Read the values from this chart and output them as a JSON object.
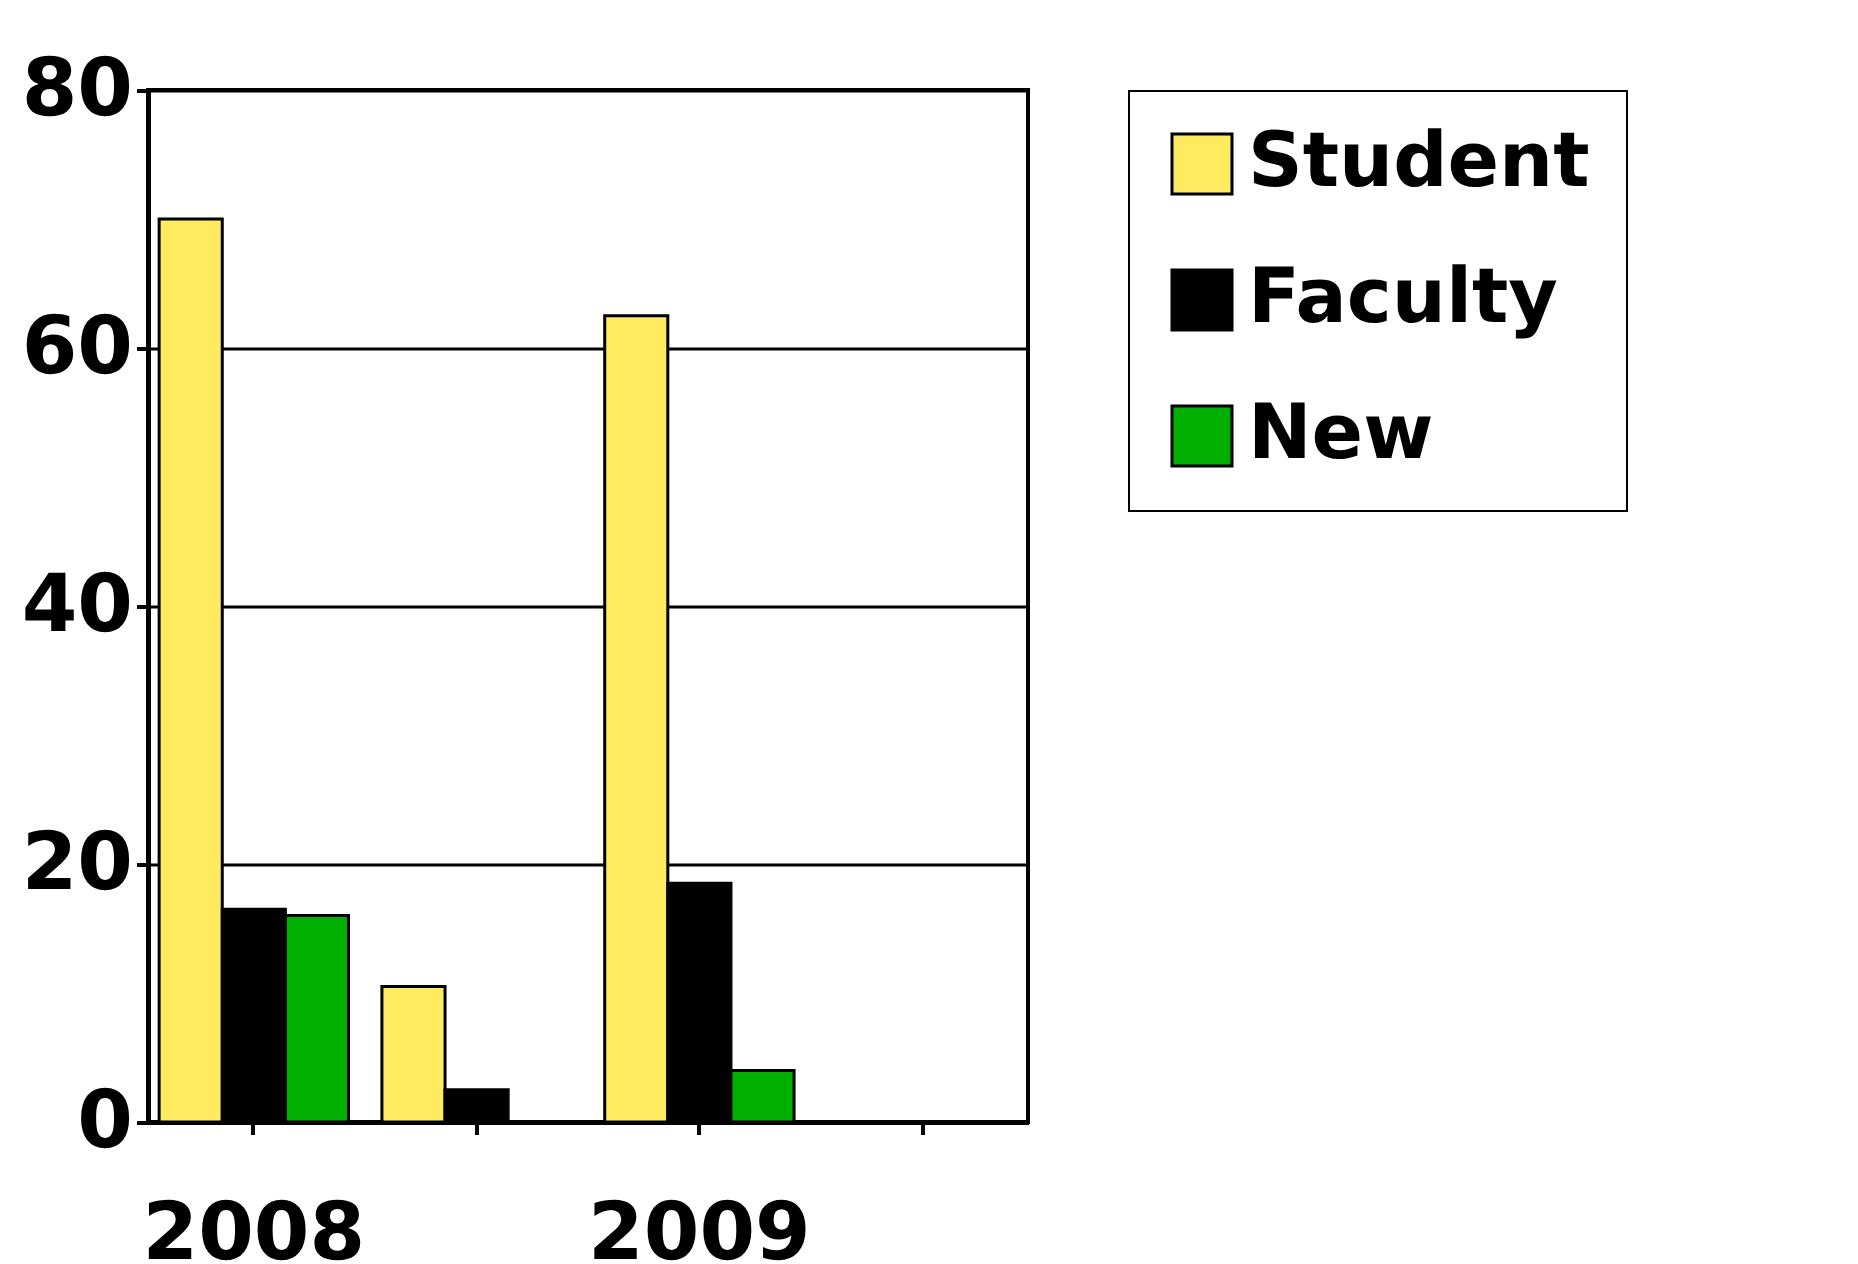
{
  "chart_data": {
    "type": "bar",
    "categories": [
      "2008",
      null,
      "2009",
      null
    ],
    "series": [
      {
        "name": "Student",
        "color": "#ffeb60",
        "values": [
          70,
          10.5,
          62.5,
          null
        ]
      },
      {
        "name": "Faculty",
        "color": "#000000",
        "values": [
          16.5,
          2.5,
          18.5,
          null
        ]
      },
      {
        "name": "New",
        "color": "#00b000",
        "values": [
          16,
          null,
          4,
          null
        ]
      }
    ],
    "ylim": [
      0,
      80
    ],
    "yticks": [
      0,
      20,
      40,
      60,
      80
    ],
    "grid": "y",
    "legend": "right"
  }
}
